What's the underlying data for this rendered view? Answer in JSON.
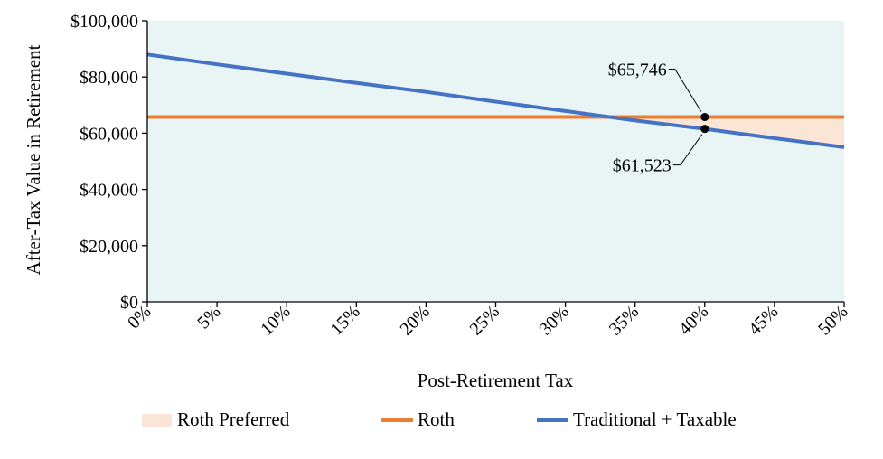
{
  "chart_data": {
    "type": "line",
    "xlabel": "Post-Retirement Tax",
    "ylabel": "After-Tax Value in Retirement",
    "xlim": [
      0,
      50
    ],
    "ylim": [
      0,
      100000
    ],
    "x_ticks": [
      "0%",
      "5%",
      "10%",
      "15%",
      "20%",
      "25%",
      "30%",
      "35%",
      "40%",
      "45%",
      "50%"
    ],
    "y_ticks": [
      "$0",
      "$20,000",
      "$40,000",
      "$60,000",
      "$80,000",
      "$100,000"
    ],
    "x": [
      0,
      5,
      10,
      15,
      20,
      25,
      30,
      35,
      40,
      45,
      50
    ],
    "series": [
      {
        "name": "Roth",
        "color": "#ED7D31",
        "values": [
          65746,
          65746,
          65746,
          65746,
          65746,
          65746,
          65746,
          65746,
          65746,
          65746,
          65746
        ]
      },
      {
        "name": "Traditional + Taxable",
        "color": "#4472C4",
        "values": [
          88000,
          84500,
          81200,
          77900,
          74700,
          71200,
          67900,
          64500,
          61523,
          58200,
          55000
        ]
      }
    ],
    "shaded_region": {
      "name": "Roth Preferred",
      "color": "#FBE5D6",
      "x_range": [
        33.7,
        50
      ]
    },
    "plot_background": "#E9F5F5",
    "annotations": [
      {
        "x": 40,
        "y": 65746,
        "label": "$65,746"
      },
      {
        "x": 40,
        "y": 61523,
        "label": "$61,523"
      }
    ],
    "legend_position": "bottom",
    "grid": false
  }
}
